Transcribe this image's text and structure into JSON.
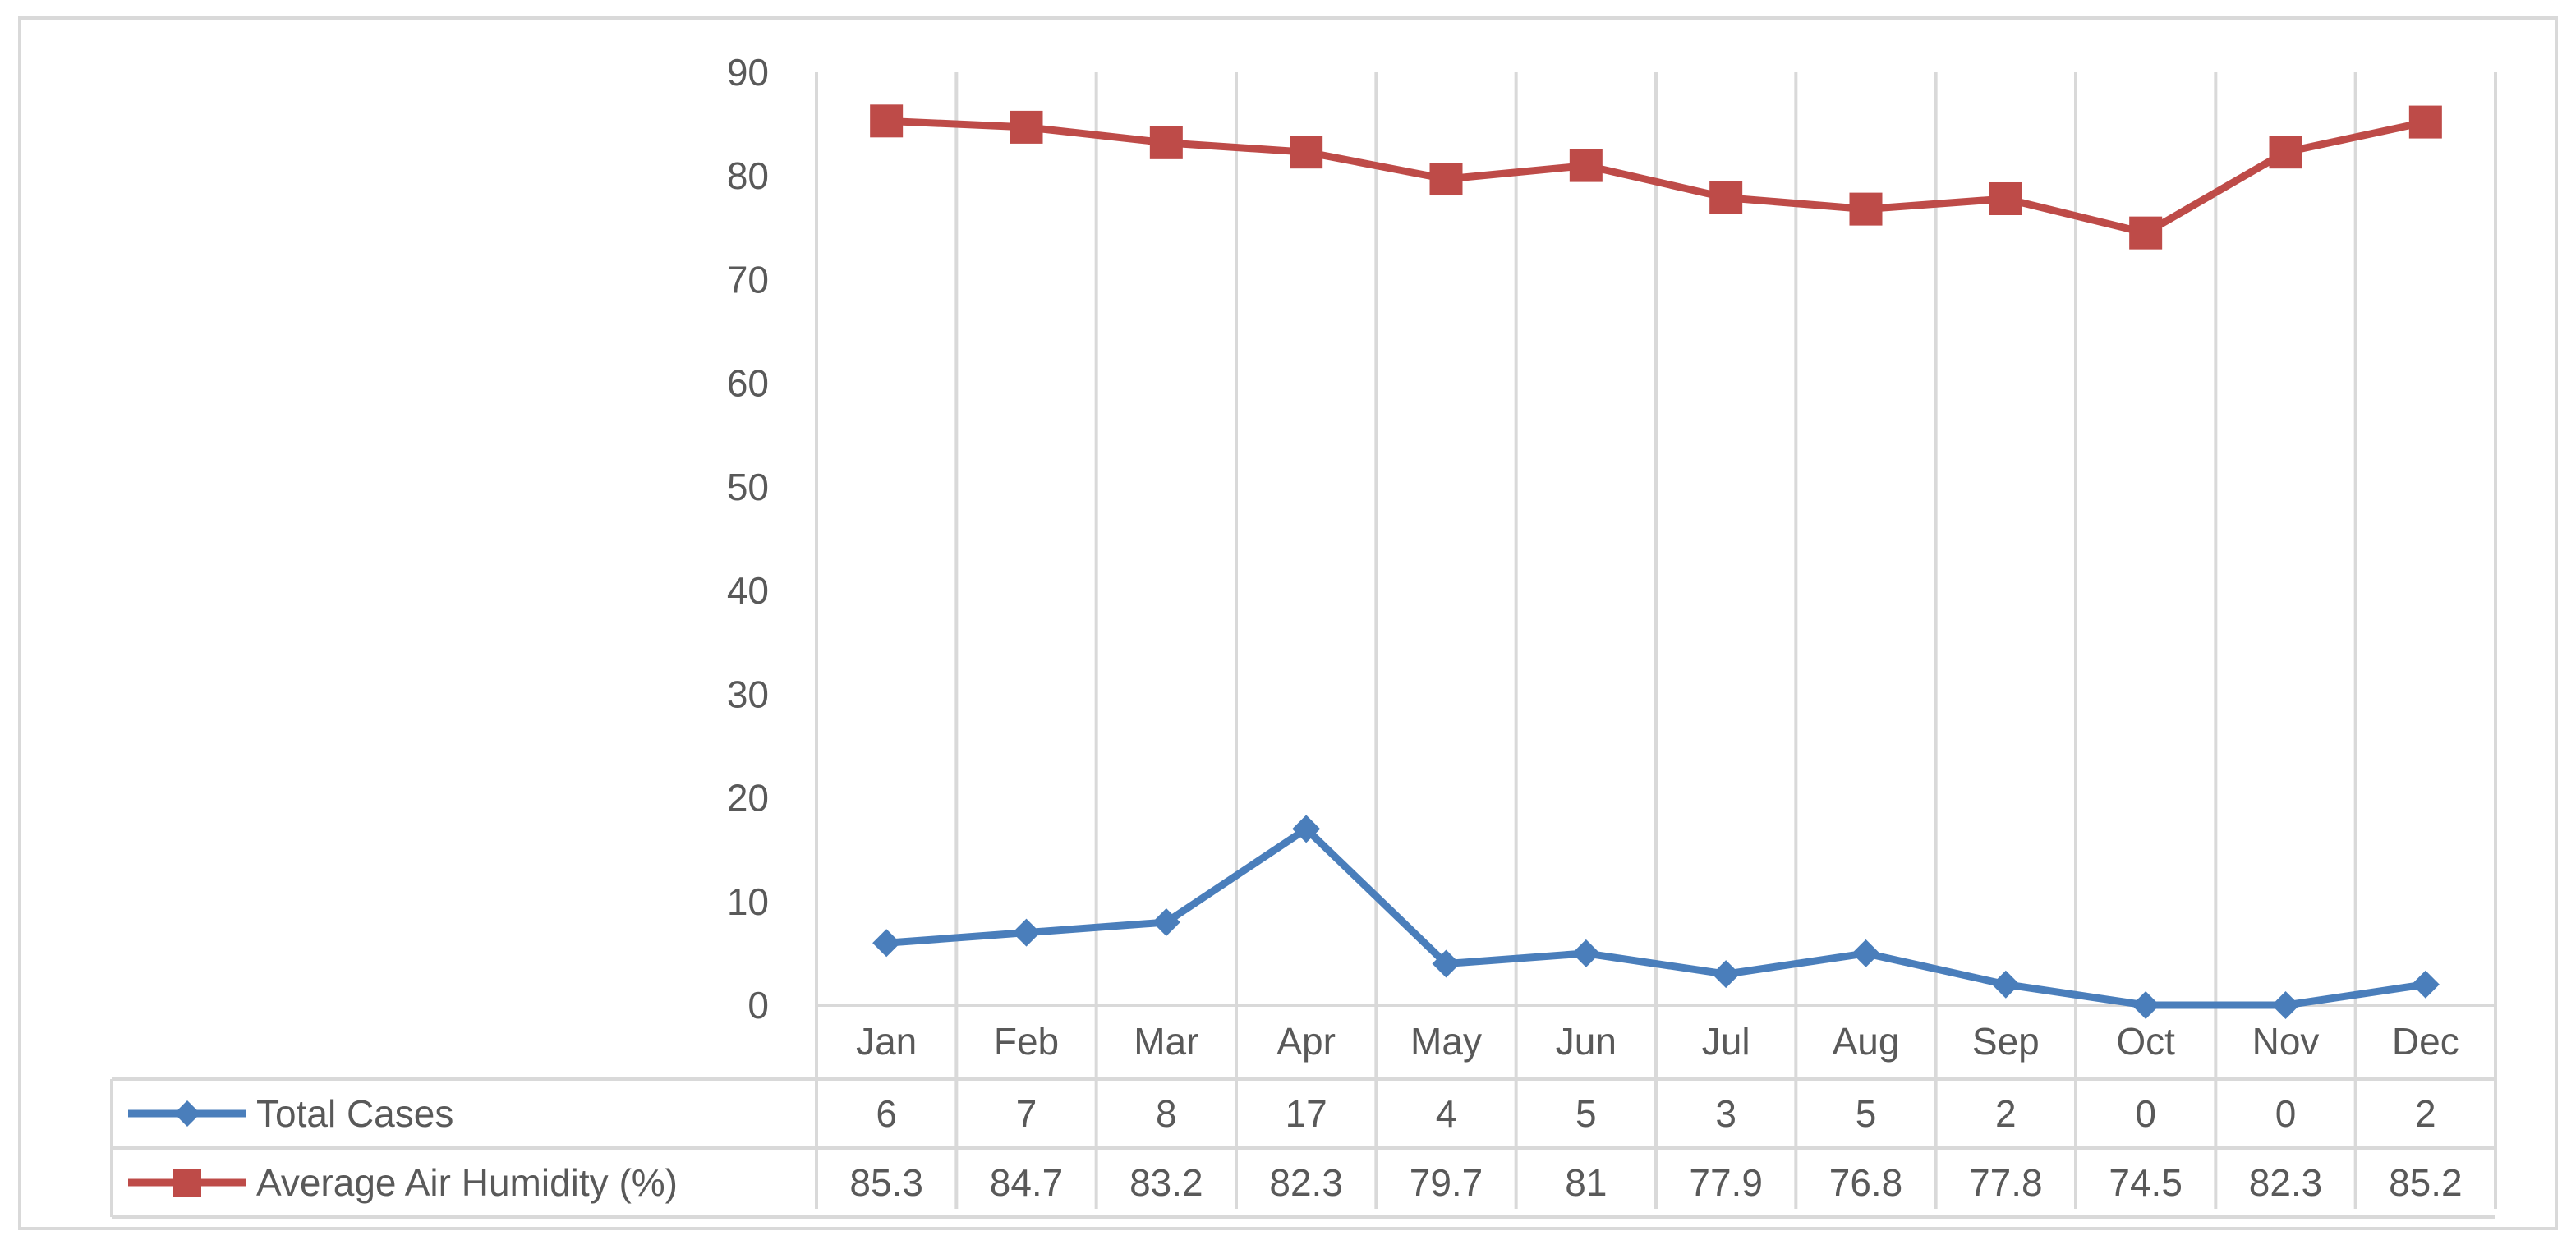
{
  "chart_data": {
    "type": "line",
    "categories": [
      "Jan",
      "Feb",
      "Mar",
      "Apr",
      "May",
      "Jun",
      "Jul",
      "Aug",
      "Sep",
      "Oct",
      "Nov",
      "Dec"
    ],
    "series": [
      {
        "name": "Total Cases",
        "values": [
          6,
          7,
          8,
          17,
          4,
          5,
          3,
          5,
          2,
          0,
          0,
          2
        ],
        "color": "#4a7ebb",
        "marker": "diamond"
      },
      {
        "name": "Average Air Humidity (%)",
        "values": [
          85.3,
          84.7,
          83.2,
          82.3,
          79.7,
          81,
          77.9,
          76.8,
          77.8,
          74.5,
          82.3,
          85.2
        ],
        "color": "#be4b48",
        "marker": "square"
      }
    ],
    "ylim": [
      0,
      90
    ],
    "yticks": [
      0,
      10,
      20,
      30,
      40,
      50,
      60,
      70,
      80,
      90
    ],
    "grid": "vertical",
    "data_table": true,
    "title": "",
    "xlabel": "",
    "ylabel": ""
  }
}
